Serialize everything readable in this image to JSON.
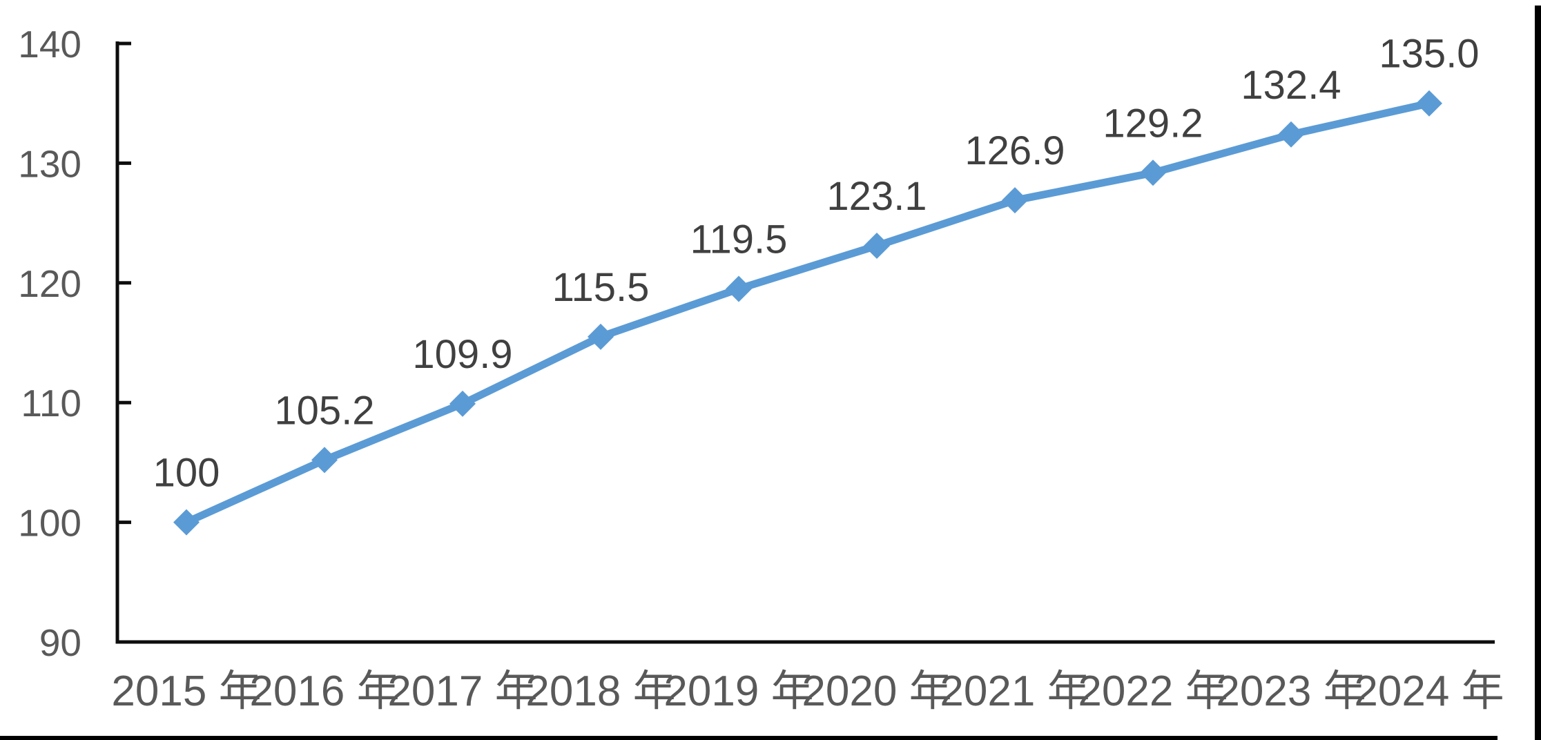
{
  "figure": {
    "background_color": "#ffffff",
    "page_border_color": "#000000"
  },
  "chart_data": {
    "type": "line",
    "title": "",
    "xlabel": "",
    "ylabel": "",
    "categories": [
      "2015 年",
      "2016 年",
      "2017 年",
      "2018 年",
      "2019 年",
      "2020 年",
      "2021 年",
      "2022 年",
      "2023 年",
      "2024 年"
    ],
    "series": [
      {
        "name": "index-line",
        "values": [
          100,
          105.2,
          109.9,
          115.5,
          119.5,
          123.1,
          126.9,
          129.2,
          132.4,
          135.0
        ],
        "data_labels": [
          "100",
          "105.2",
          "109.9",
          "115.5",
          "119.5",
          "123.1",
          "126.9",
          "129.2",
          "132.4",
          "135.0"
        ]
      }
    ],
    "ylim": [
      90,
      140
    ],
    "yticks": [
      90,
      100,
      110,
      120,
      130,
      140
    ],
    "ytick_labels": [
      "90",
      "100",
      "110",
      "120",
      "130",
      "140"
    ],
    "grid": false,
    "legend": "none",
    "marker": "diamond",
    "data_label_position": "above",
    "colors": {
      "line": "#5B9BD5",
      "marker": "#5B9BD5",
      "axis_line": "#0d0d0d",
      "axis_tick_labels": "#595959",
      "data_labels": "#404040"
    }
  }
}
